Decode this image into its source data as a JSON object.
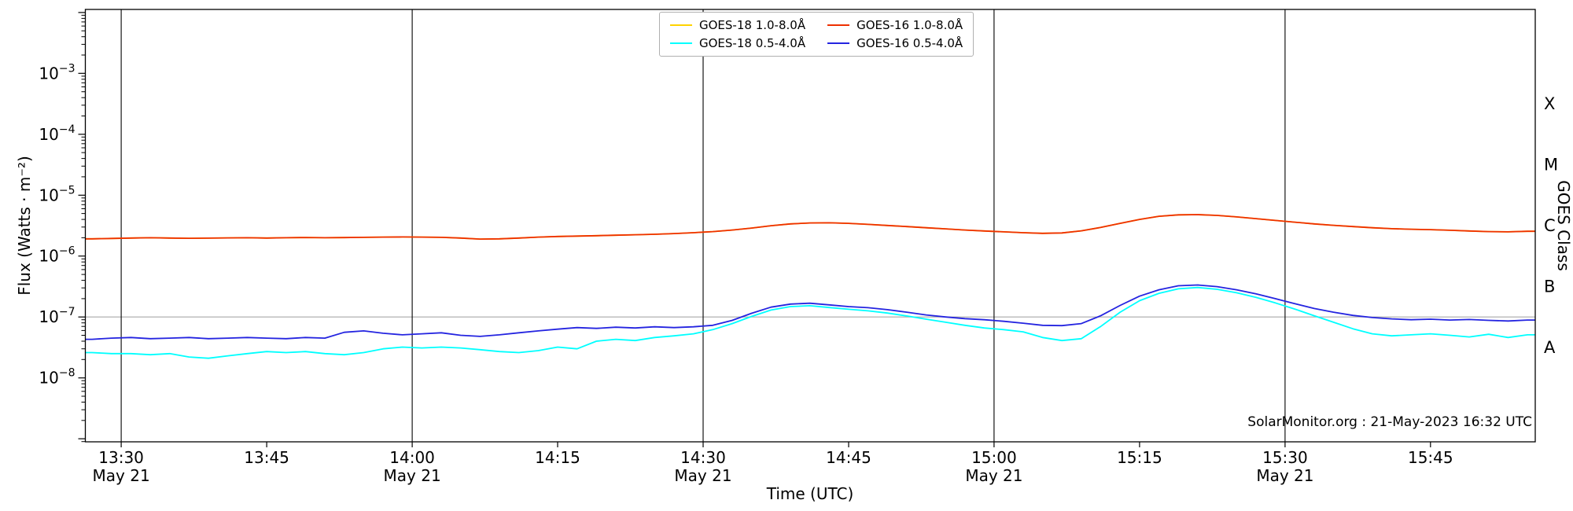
{
  "chart_data": {
    "type": "line",
    "title": "",
    "xlabel": "Time (UTC)",
    "ylabel": "Flux (Watts · m⁻²)",
    "ylabel_right": "GOES Class",
    "credit": "SolarMonitor.org : 21-May-2023 16:32 UTC",
    "x_axis_unit": "minutes after 00:00 UTC, 21-May-2023",
    "xlim_minutes": [
      806.3,
      955.8
    ],
    "y_scale": "log",
    "ylim_exp": [
      -9.05,
      -1.95
    ],
    "grid_exp": [
      -7
    ],
    "vlines_minutes": [
      810,
      840,
      870,
      900,
      930
    ],
    "x_ticks": [
      {
        "minute": 810,
        "label": "13:30",
        "sub": "May 21"
      },
      {
        "minute": 825,
        "label": "13:45",
        "sub": null
      },
      {
        "minute": 840,
        "label": "14:00",
        "sub": "May 21"
      },
      {
        "minute": 855,
        "label": "14:15",
        "sub": null
      },
      {
        "minute": 870,
        "label": "14:30",
        "sub": "May 21"
      },
      {
        "minute": 885,
        "label": "14:45",
        "sub": null
      },
      {
        "minute": 900,
        "label": "15:00",
        "sub": "May 21"
      },
      {
        "minute": 915,
        "label": "15:15",
        "sub": null
      },
      {
        "minute": 930,
        "label": "15:30",
        "sub": "May 21"
      },
      {
        "minute": 945,
        "label": "15:45",
        "sub": null
      }
    ],
    "y_ticks": [
      {
        "exp": -3,
        "base": "10",
        "sup": "−3"
      },
      {
        "exp": -4,
        "base": "10",
        "sup": "−4"
      },
      {
        "exp": -5,
        "base": "10",
        "sup": "−5"
      },
      {
        "exp": -6,
        "base": "10",
        "sup": "−6"
      },
      {
        "exp": -7,
        "base": "10",
        "sup": "−7"
      },
      {
        "exp": -8,
        "base": "10",
        "sup": "−8"
      }
    ],
    "goes_class_labels": [
      {
        "label": "X",
        "exp": -3.5
      },
      {
        "label": "M",
        "exp": -4.5
      },
      {
        "label": "C",
        "exp": -5.5
      },
      {
        "label": "B",
        "exp": -6.5
      },
      {
        "label": "A",
        "exp": -7.5
      }
    ],
    "x_minutes": [
      807,
      809,
      811,
      813,
      815,
      817,
      819,
      821,
      823,
      825,
      827,
      829,
      831,
      833,
      835,
      837,
      839,
      841,
      843,
      845,
      847,
      849,
      851,
      853,
      855,
      857,
      859,
      861,
      863,
      865,
      867,
      869,
      871,
      873,
      875,
      877,
      879,
      881,
      883,
      885,
      887,
      889,
      891,
      893,
      895,
      897,
      899,
      901,
      903,
      905,
      907,
      909,
      911,
      913,
      915,
      917,
      919,
      921,
      923,
      925,
      927,
      929,
      931,
      933,
      935,
      937,
      939,
      941,
      943,
      945,
      947,
      949,
      951,
      953,
      955
    ],
    "series": [
      {
        "name": "GOES-18 1.0-8.0Å",
        "color": "#ffd300",
        "note": "coincides with GOES-16 1.0-8.0Å trace (hidden beneath it)",
        "values": [
          1.92e-06,
          1.95e-06,
          1.98e-06,
          2e-06,
          1.98e-06,
          1.96e-06,
          1.97e-06,
          1.99e-06,
          2e-06,
          1.98e-06,
          2e-06,
          2.02e-06,
          2e-06,
          2.01e-06,
          2.03e-06,
          2.05e-06,
          2.06e-06,
          2.05e-06,
          2.03e-06,
          1.98e-06,
          1.9e-06,
          1.92e-06,
          1.98e-06,
          2.05e-06,
          2.1e-06,
          2.13e-06,
          2.16e-06,
          2.2e-06,
          2.24e-06,
          2.28e-06,
          2.34e-06,
          2.42e-06,
          2.52e-06,
          2.68e-06,
          2.88e-06,
          3.15e-06,
          3.38e-06,
          3.5e-06,
          3.52e-06,
          3.45e-06,
          3.32e-06,
          3.18e-06,
          3.05e-06,
          2.92e-06,
          2.8e-06,
          2.68e-06,
          2.58e-06,
          2.5e-06,
          2.42e-06,
          2.36e-06,
          2.4e-06,
          2.6e-06,
          2.95e-06,
          3.45e-06,
          4e-06,
          4.5e-06,
          4.75e-06,
          4.8e-06,
          4.65e-06,
          4.4e-06,
          4.12e-06,
          3.85e-06,
          3.6e-06,
          3.38e-06,
          3.2e-06,
          3.05e-06,
          2.92e-06,
          2.82e-06,
          2.76e-06,
          2.72e-06,
          2.65e-06,
          2.58e-06,
          2.52e-06,
          2.5e-06,
          2.55e-06
        ]
      },
      {
        "name": "GOES-18 0.5-4.0Å",
        "color": "#00ffff",
        "values": [
          2.6e-08,
          2.5e-08,
          2.5e-08,
          2.4e-08,
          2.5e-08,
          2.2e-08,
          2.1e-08,
          2.3e-08,
          2.5e-08,
          2.7e-08,
          2.6e-08,
          2.7e-08,
          2.5e-08,
          2.4e-08,
          2.6e-08,
          3e-08,
          3.2e-08,
          3.1e-08,
          3.2e-08,
          3.1e-08,
          2.9e-08,
          2.7e-08,
          2.6e-08,
          2.8e-08,
          3.2e-08,
          3e-08,
          4e-08,
          4.3e-08,
          4.1e-08,
          4.6e-08,
          4.9e-08,
          5.3e-08,
          6.2e-08,
          7.8e-08,
          1.02e-07,
          1.3e-07,
          1.48e-07,
          1.53e-07,
          1.43e-07,
          1.34e-07,
          1.26e-07,
          1.16e-07,
          1.04e-07,
          9.2e-08,
          8.2e-08,
          7.3e-08,
          6.6e-08,
          6.2e-08,
          5.7e-08,
          4.6e-08,
          4.1e-08,
          4.4e-08,
          7e-08,
          1.2e-07,
          1.85e-07,
          2.45e-07,
          2.9e-07,
          3.05e-07,
          2.85e-07,
          2.5e-07,
          2.1e-07,
          1.7e-07,
          1.35e-07,
          1.05e-07,
          8.2e-08,
          6.4e-08,
          5.3e-08,
          4.9e-08,
          5.1e-08,
          5.3e-08,
          5e-08,
          4.7e-08,
          5.2e-08,
          4.6e-08,
          5.1e-08
        ]
      },
      {
        "name": "GOES-16 1.0-8.0Å",
        "color": "#ee3000",
        "values": [
          1.92e-06,
          1.95e-06,
          1.98e-06,
          2e-06,
          1.98e-06,
          1.96e-06,
          1.97e-06,
          1.99e-06,
          2e-06,
          1.98e-06,
          2e-06,
          2.02e-06,
          2e-06,
          2.01e-06,
          2.03e-06,
          2.05e-06,
          2.06e-06,
          2.05e-06,
          2.03e-06,
          1.98e-06,
          1.9e-06,
          1.92e-06,
          1.98e-06,
          2.05e-06,
          2.1e-06,
          2.13e-06,
          2.16e-06,
          2.2e-06,
          2.24e-06,
          2.28e-06,
          2.34e-06,
          2.42e-06,
          2.52e-06,
          2.68e-06,
          2.88e-06,
          3.15e-06,
          3.38e-06,
          3.5e-06,
          3.52e-06,
          3.45e-06,
          3.32e-06,
          3.18e-06,
          3.05e-06,
          2.92e-06,
          2.8e-06,
          2.68e-06,
          2.58e-06,
          2.5e-06,
          2.42e-06,
          2.36e-06,
          2.4e-06,
          2.6e-06,
          2.95e-06,
          3.45e-06,
          4e-06,
          4.5e-06,
          4.75e-06,
          4.8e-06,
          4.65e-06,
          4.4e-06,
          4.12e-06,
          3.85e-06,
          3.6e-06,
          3.38e-06,
          3.2e-06,
          3.05e-06,
          2.92e-06,
          2.82e-06,
          2.76e-06,
          2.72e-06,
          2.65e-06,
          2.58e-06,
          2.52e-06,
          2.5e-06,
          2.55e-06
        ]
      },
      {
        "name": "GOES-16 0.5-4.0Å",
        "color": "#2424e0",
        "values": [
          4.3e-08,
          4.5e-08,
          4.6e-08,
          4.4e-08,
          4.5e-08,
          4.6e-08,
          4.4e-08,
          4.5e-08,
          4.6e-08,
          4.5e-08,
          4.4e-08,
          4.6e-08,
          4.5e-08,
          5.6e-08,
          5.9e-08,
          5.4e-08,
          5.1e-08,
          5.3e-08,
          5.5e-08,
          5e-08,
          4.8e-08,
          5.1e-08,
          5.5e-08,
          5.9e-08,
          6.3e-08,
          6.7e-08,
          6.5e-08,
          6.8e-08,
          6.6e-08,
          6.9e-08,
          6.7e-08,
          6.9e-08,
          7.3e-08,
          8.8e-08,
          1.15e-07,
          1.45e-07,
          1.63e-07,
          1.68e-07,
          1.58e-07,
          1.48e-07,
          1.42e-07,
          1.32e-07,
          1.2e-07,
          1.08e-07,
          1e-07,
          9.4e-08,
          9e-08,
          8.5e-08,
          7.9e-08,
          7.3e-08,
          7.2e-08,
          7.8e-08,
          1.05e-07,
          1.55e-07,
          2.2e-07,
          2.8e-07,
          3.25e-07,
          3.35e-07,
          3.15e-07,
          2.8e-07,
          2.4e-07,
          2e-07,
          1.65e-07,
          1.38e-07,
          1.2e-07,
          1.06e-07,
          9.8e-08,
          9.3e-08,
          9e-08,
          9.2e-08,
          8.9e-08,
          9.1e-08,
          8.8e-08,
          8.6e-08,
          8.9e-08
        ]
      }
    ]
  }
}
